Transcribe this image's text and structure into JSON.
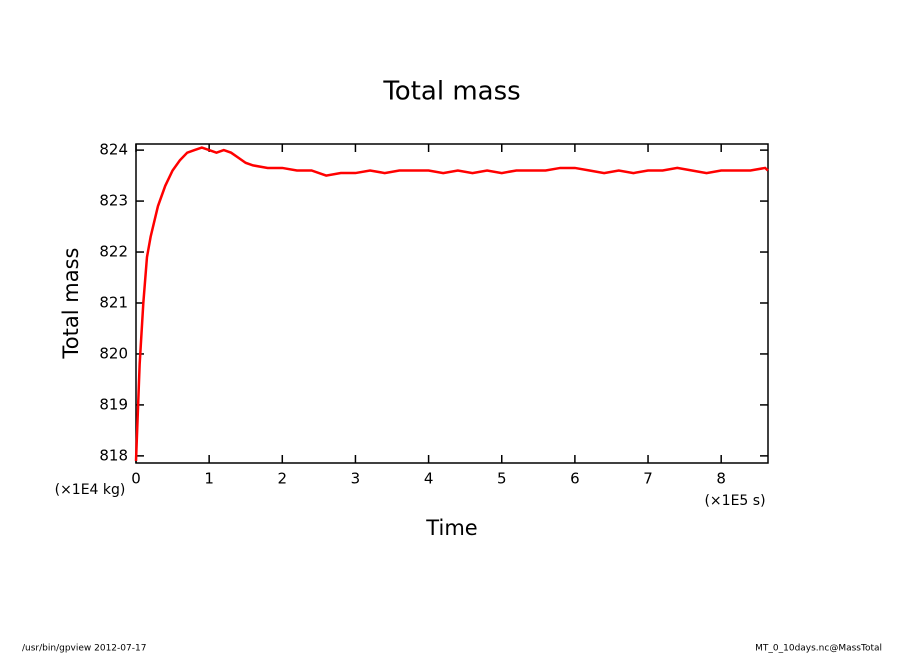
{
  "chart_data": {
    "type": "line",
    "title": "Total mass",
    "x_label": "Time",
    "y_label": "Total mass",
    "x_unit": "(×1E5 s)",
    "y_unit": "(×1E4 kg)",
    "footer_left": "/usr/bin/gpview  2012-07-17",
    "footer_right": "MT_0_10days.nc@MassTotal",
    "x": [
      0,
      0.05,
      0.1,
      0.15,
      0.2,
      0.3,
      0.4,
      0.5,
      0.6,
      0.7,
      0.8,
      0.9,
      1.0,
      1.1,
      1.2,
      1.3,
      1.4,
      1.5,
      1.6,
      1.8,
      2.0,
      2.2,
      2.4,
      2.6,
      2.8,
      3.0,
      3.2,
      3.4,
      3.6,
      3.8,
      4.0,
      4.2,
      4.4,
      4.6,
      4.8,
      5.0,
      5.2,
      5.4,
      5.6,
      5.8,
      6.0,
      6.2,
      6.4,
      6.6,
      6.8,
      7.0,
      7.2,
      7.4,
      7.6,
      7.8,
      8.0,
      8.2,
      8.4,
      8.6,
      8.64
    ],
    "series": [
      {
        "name": "Total mass",
        "color": "#ff0000",
        "values": [
          817.9,
          819.8,
          821.0,
          821.9,
          822.3,
          822.9,
          823.3,
          823.6,
          823.8,
          823.95,
          824.0,
          824.05,
          824.0,
          823.95,
          824.0,
          823.95,
          823.85,
          823.75,
          823.7,
          823.65,
          823.65,
          823.6,
          823.6,
          823.5,
          823.55,
          823.55,
          823.6,
          823.55,
          823.6,
          823.6,
          823.6,
          823.55,
          823.6,
          823.55,
          823.6,
          823.55,
          823.6,
          823.6,
          823.6,
          823.65,
          823.65,
          823.6,
          823.55,
          823.6,
          823.55,
          823.6,
          823.6,
          823.65,
          823.6,
          823.55,
          823.6,
          823.6,
          823.6,
          823.65,
          823.6
        ]
      }
    ],
    "xlim": [
      0,
      8.64
    ],
    "ylim": [
      817.86,
      824.12
    ],
    "xticks": [
      0,
      1,
      2,
      3,
      4,
      5,
      6,
      7,
      8
    ],
    "yticks": [
      818,
      819,
      820,
      821,
      822,
      823,
      824
    ]
  }
}
